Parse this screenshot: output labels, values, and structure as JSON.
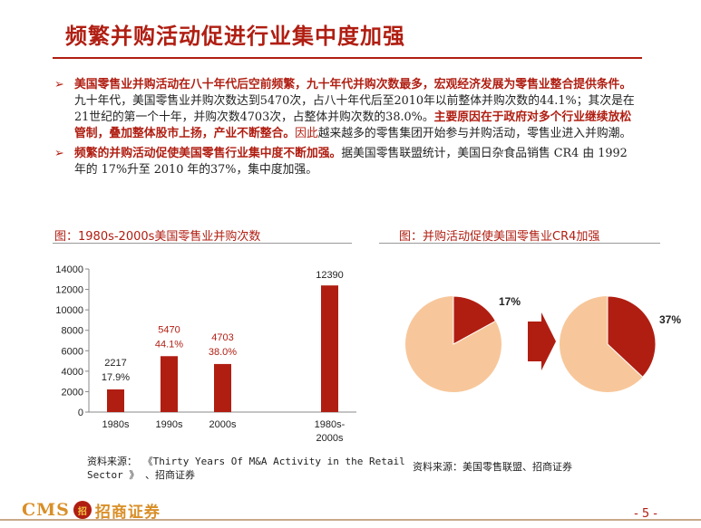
{
  "title": "频繁并购活动促进行业集中度加强",
  "bullets": {
    "b1": {
      "part1": "美国零售业并购活动在八十年代后空前频繁，九十年代并购次数最多，宏观经济发展为零售业整合提供条件。",
      "part2": "九十年代，美国零售业并购次数达到5470次，占八十年代后至2010年以前整体并购次数的44.1%；其次是在21世纪的第一个十年，并购次数4703次，占整体并购次数的38.0%。",
      "part3": "主要原因在于政府对多个行业继续放松管制，叠加整体股市上扬，产业不断整合。",
      "part4": "因此",
      "part5": "越来越多的零售集团开始参与并购活动，零售业进入并购潮。"
    },
    "b2": {
      "part1": "频繁的并购活动促使美国零售行业集中度不断加强。",
      "part2": "据美国零售联盟统计，美国日杂食品销售 CR4 由 1992 年的 17%升至 2010 年的37%，集中度加强。"
    }
  },
  "left_chart_title": "图：1980s-2000s美国零售业并购次数",
  "right_chart_title": "图：并购活动促使美国零售业CR4加强",
  "left_source": {
    "line1": "资料来源：  《Thirty Years Of M&A Activity in the Retail",
    "line2": "Sector 》 、招商证券"
  },
  "right_source": "资料来源：美国零售联盟、招商证券",
  "logo": {
    "cms": "CMS",
    "badge": "招",
    "name": "招商证券"
  },
  "page_number": "- 5 -",
  "colors": {
    "accent": "#b01e12",
    "pie_light": "#f7c79b",
    "bar": "#b01e12"
  },
  "chart_data": [
    {
      "type": "bar",
      "categories": [
        "1980s",
        "1990s",
        "2000s",
        "",
        "1980s-2000s"
      ],
      "values": [
        2217,
        5470,
        4703,
        null,
        12390
      ],
      "value_labels": [
        "2217",
        "5470",
        "4703",
        "",
        "12390"
      ],
      "share_labels": [
        "17.9%",
        "44.1%",
        "38.0%",
        "",
        ""
      ],
      "ylim": [
        0,
        14000
      ],
      "yticks": [
        "0",
        "2000",
        "4000",
        "6000",
        "8000",
        "10000",
        "12000",
        "14000"
      ],
      "grid": false
    },
    {
      "type": "pie",
      "charts": [
        {
          "label": "17%",
          "value": 17
        },
        {
          "label": "37%",
          "value": 37
        }
      ]
    }
  ]
}
